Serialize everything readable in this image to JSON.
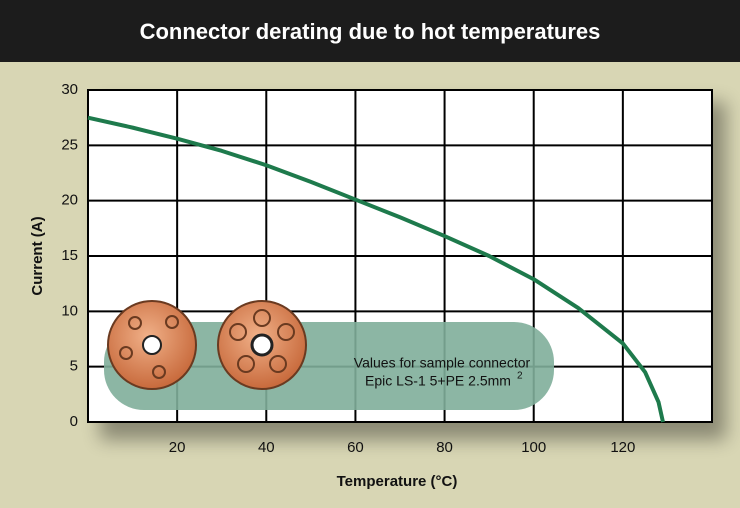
{
  "chart_data": {
    "type": "line",
    "title": "Connector derating due to hot temperatures",
    "xlabel": "Temperature  (°C)",
    "ylabel": "Current  (A)",
    "x": [
      0,
      10,
      20,
      30,
      40,
      50,
      60,
      70,
      80,
      90,
      100,
      110,
      120,
      125,
      128,
      129
    ],
    "series": [
      {
        "color": "#1e7a4c",
        "values": [
          27.5,
          26.6,
          25.6,
          24.5,
          23.2,
          21.7,
          20.1,
          18.5,
          16.8,
          15,
          12.9,
          10.3,
          7.1,
          4.5,
          1.8,
          0
        ]
      }
    ],
    "xlim": [
      0,
      140
    ],
    "ylim": [
      0,
      30
    ],
    "xticks": [
      20,
      40,
      60,
      80,
      100,
      120
    ],
    "yticks": [
      0,
      5,
      10,
      15,
      20,
      25,
      30
    ],
    "grid": true,
    "annotation": [
      "Values for sample connector",
      "Epic LS-1 5+PE 2.5mm"
    ],
    "annotation_superscript": "2"
  }
}
